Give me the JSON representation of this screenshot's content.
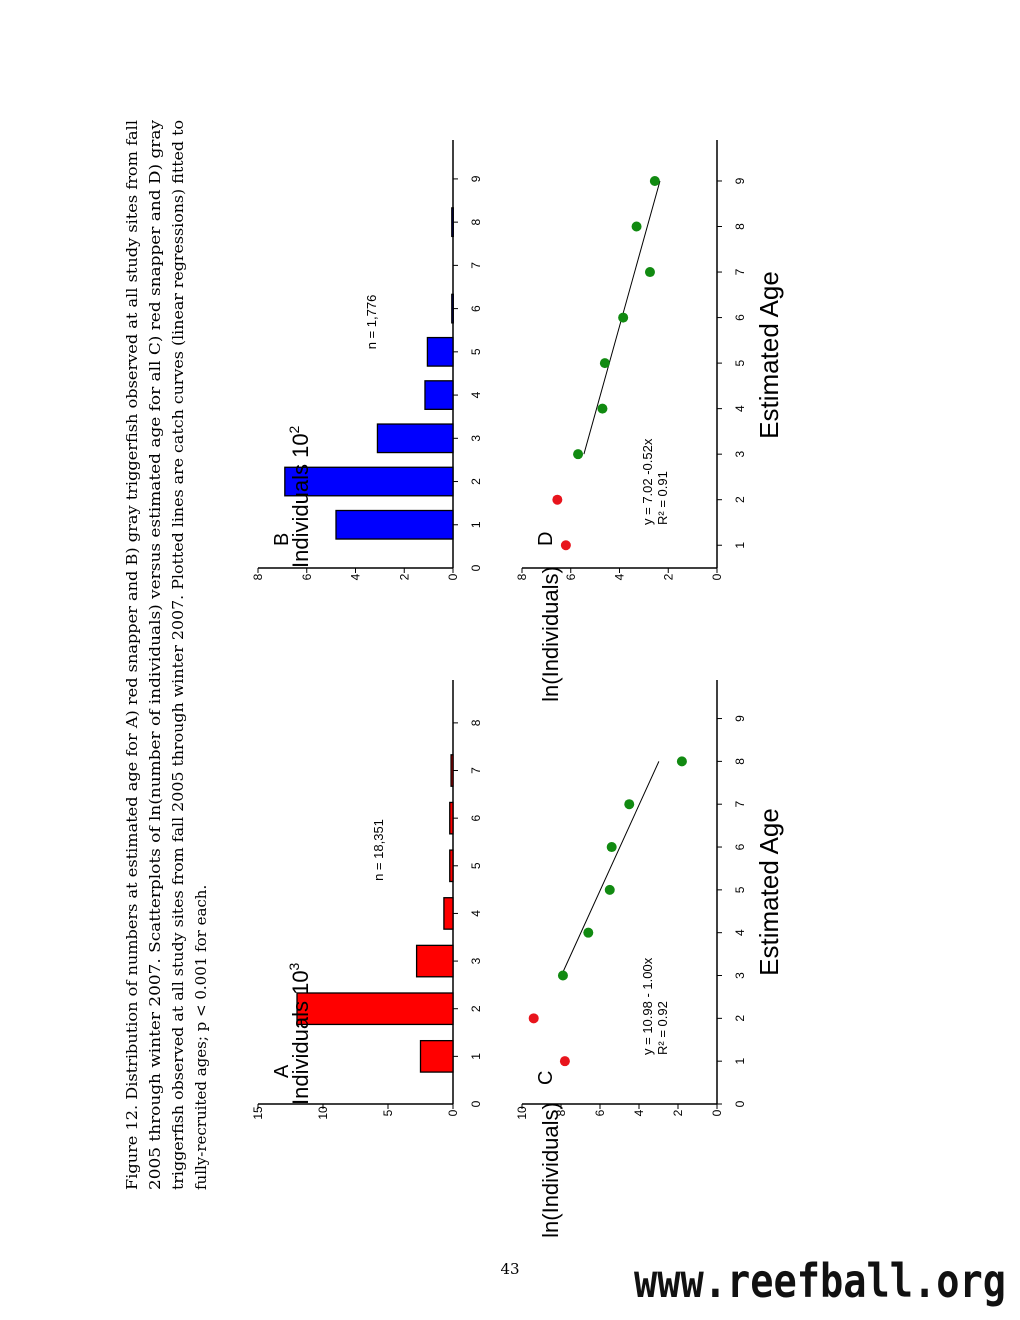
{
  "caption": {
    "lines": [
      "Figure 12. Distribution of numbers at estimated age for A) red snapper and B) gray triggerfish observed at all study sites from fall",
      "2005 through winter 2007. Scatterplots of ln(number of individuals) versus estimated age for all C) red snapper and D) gray",
      "triggerfish observed at all study sites from fall 2005 through winter 2007. Plotted lines are catch curves (linear regressions) fitted to",
      "fully-recruited ages; p < 0.001 for each."
    ]
  },
  "page_number": "43",
  "watermark": "www.reefball.org",
  "colors": {
    "red": "#ff0000",
    "blue": "#0000ff",
    "red_dot": "#e8141c",
    "green_dot": "#118a11"
  },
  "x_axis_title": "Estimated Age",
  "chart_data": [
    {
      "panel": "A",
      "type": "bar",
      "species": "red snapper",
      "color": "#ff0000",
      "categories": [
        "1",
        "2",
        "3",
        "4",
        "5",
        "6",
        "7",
        "8"
      ],
      "values": [
        2.5,
        12.0,
        2.8,
        0.7,
        0.25,
        0.25,
        0.15,
        0.0
      ],
      "ylabel": "Individuals",
      "ylabel_exp": "10",
      "ylabel_sup": "3",
      "ylim": [
        0,
        15
      ],
      "yticks": [
        "0",
        "5",
        "10",
        "15"
      ],
      "xlim": [
        0,
        8.9
      ],
      "annotation": "n = 18,351"
    },
    {
      "panel": "B",
      "type": "bar",
      "species": "gray triggerfish",
      "color": "#0000ff",
      "categories": [
        "1",
        "2",
        "3",
        "4",
        "5",
        "6",
        "7",
        "8",
        "9"
      ],
      "values": [
        4.8,
        6.9,
        3.1,
        1.15,
        1.05,
        0.05,
        0.0,
        0.05,
        0.0
      ],
      "ylabel": "Individuals",
      "ylabel_exp": "10",
      "ylabel_sup": "2",
      "ylim": [
        0,
        8
      ],
      "yticks": [
        "0",
        "2",
        "4",
        "6",
        "8"
      ],
      "xlim": [
        0,
        9.9
      ],
      "annotation": "n = 1,776"
    },
    {
      "panel": "C",
      "type": "scatter",
      "species": "red snapper",
      "ylabel": "ln(Individuals)",
      "ylim": [
        0,
        10
      ],
      "yticks": [
        "0",
        "2",
        "4",
        "6",
        "8",
        "10"
      ],
      "xlim": [
        0,
        9.9
      ],
      "xticks": [
        "0",
        "1",
        "2",
        "3",
        "4",
        "5",
        "6",
        "7",
        "8",
        "9"
      ],
      "points": [
        {
          "x": 1,
          "y": 7.8,
          "group": "red"
        },
        {
          "x": 2,
          "y": 9.4,
          "group": "red"
        },
        {
          "x": 3,
          "y": 7.9,
          "group": "green"
        },
        {
          "x": 4,
          "y": 6.6,
          "group": "green"
        },
        {
          "x": 5,
          "y": 5.5,
          "group": "green"
        },
        {
          "x": 6,
          "y": 5.4,
          "group": "green"
        },
        {
          "x": 7,
          "y": 4.5,
          "group": "green"
        },
        {
          "x": 8,
          "y": 1.8,
          "group": "green"
        }
      ],
      "fit": {
        "intercept": 10.98,
        "slope": -1.0,
        "x_from": 3,
        "x_to": 8
      },
      "equation": "y = 10.98 - 1.00x",
      "r2": "R² = 0.92"
    },
    {
      "panel": "D",
      "type": "scatter",
      "species": "gray triggerfish",
      "ylabel": "ln(Individuals)",
      "ylim": [
        0,
        8
      ],
      "yticks": [
        "0",
        "2",
        "4",
        "6",
        "8"
      ],
      "xlim": [
        0.5,
        9.9
      ],
      "xticks": [
        "1",
        "2",
        "3",
        "4",
        "5",
        "6",
        "7",
        "8",
        "9"
      ],
      "points": [
        {
          "x": 1,
          "y": 6.2,
          "group": "red"
        },
        {
          "x": 2,
          "y": 6.55,
          "group": "red"
        },
        {
          "x": 3,
          "y": 5.7,
          "group": "green"
        },
        {
          "x": 4,
          "y": 4.7,
          "group": "green"
        },
        {
          "x": 5,
          "y": 4.6,
          "group": "green"
        },
        {
          "x": 6,
          "y": 3.85,
          "group": "green"
        },
        {
          "x": 7,
          "y": 2.75,
          "group": "green"
        },
        {
          "x": 8,
          "y": 3.3,
          "group": "green"
        },
        {
          "x": 9,
          "y": 2.55,
          "group": "green"
        }
      ],
      "fit": {
        "intercept": 7.02,
        "slope": -0.52,
        "x_from": 3,
        "x_to": 9
      },
      "equation": "y = 7.02 -0.52x",
      "r2": "R² = 0.91"
    }
  ]
}
